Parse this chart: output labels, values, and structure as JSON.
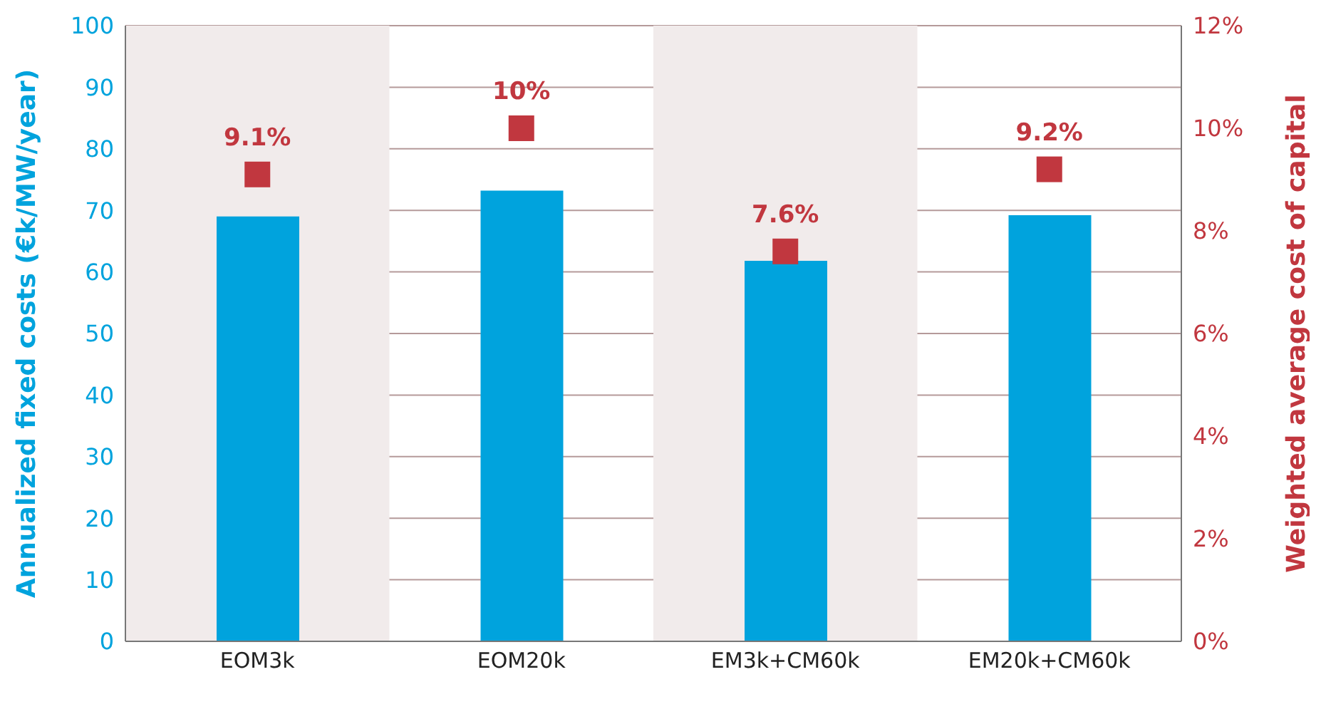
{
  "chart_data": {
    "type": "bar",
    "categories": [
      "EOM3k",
      "EOM20k",
      "EM3k+CM60k",
      "EM20k+CM60k"
    ],
    "ylabel": "Annualized fixed costs (€k/MW/year)",
    "y2label": "Weighted average cost of capital",
    "series": [
      {
        "color": "#00a3dd",
        "values": [
          69,
          73.2,
          61.8,
          69.2
        ]
      },
      {
        "type": "scatter",
        "axis": "y2",
        "color": "#c1373f",
        "marker": "square",
        "values": [
          9.1,
          10,
          7.6,
          9.2
        ],
        "value_labels": [
          "9.1%",
          "10%",
          "7.6%",
          "9.2%"
        ]
      }
    ],
    "ylim": [
      0,
      100
    ],
    "yticks": [
      0,
      10,
      20,
      30,
      40,
      50,
      60,
      70,
      80,
      90,
      100
    ],
    "y2lim": [
      0,
      12
    ],
    "y2ticks": [
      {
        "value": 0,
        "label": "0%"
      },
      {
        "value": 2,
        "label": "2%"
      },
      {
        "value": 4,
        "label": "4%"
      },
      {
        "value": 6,
        "label": "6%"
      },
      {
        "value": 8,
        "label": "8%"
      },
      {
        "value": 10,
        "label": "10%"
      },
      {
        "value": 12,
        "label": "12%"
      }
    ],
    "bands": [
      {
        "axis": "x",
        "from": "EOM3k",
        "to": "EOM3k",
        "color": "#f1ebeb"
      },
      {
        "axis": "x",
        "from": "EM3k+CM60k",
        "to": "EM3k+CM60k",
        "color": "#f1ebeb"
      }
    ],
    "grid": "y",
    "legend": false
  }
}
